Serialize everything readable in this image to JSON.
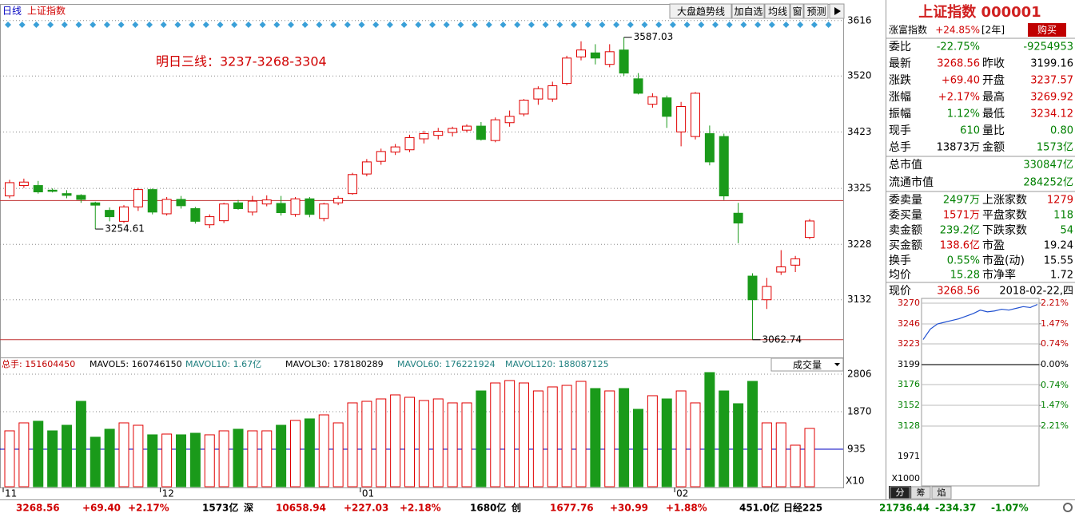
{
  "header": {
    "period": "日线",
    "symbol": "上证指数",
    "panel_title": "上证指数 000001"
  },
  "toolbar": [
    "大盘趋势线",
    "加自选",
    "均线",
    "窗",
    "预测"
  ],
  "chart_data": {
    "type": "candlestick",
    "annotation": "明日三线：3237-3268-3304",
    "high_label": {
      "value": 3587.03,
      "label": "3587.03"
    },
    "low_labels": [
      {
        "value": 3254.61,
        "label": "3254.61"
      },
      {
        "value": 3062.74,
        "label": "3062.74"
      }
    ],
    "ref_lines": [
      3304,
      3062.74
    ],
    "ylim": [
      3032,
      3624
    ],
    "yticks": [
      3616,
      3520,
      3423,
      3325,
      3228,
      3132
    ],
    "month_labels": [
      "11",
      "12",
      "01",
      "02"
    ],
    "month_index": [
      0,
      11,
      25,
      47
    ],
    "up_color": "#e00000",
    "down_color": "#1a9a1a",
    "candles": [
      {
        "open": 3312,
        "close": 3335,
        "high": 3340,
        "low": 3308
      },
      {
        "open": 3330,
        "close": 3336,
        "high": 3342,
        "low": 3326
      },
      {
        "open": 3330,
        "close": 3319,
        "high": 3338,
        "low": 3316
      },
      {
        "open": 3322,
        "close": 3320,
        "high": 3325,
        "low": 3318
      },
      {
        "open": 3316,
        "close": 3313,
        "high": 3322,
        "low": 3308
      },
      {
        "open": 3313,
        "close": 3306,
        "high": 3315,
        "low": 3300
      },
      {
        "open": 3300,
        "close": 3296,
        "high": 3302,
        "low": 3254.61
      },
      {
        "open": 3287,
        "close": 3276,
        "high": 3292,
        "low": 3268
      },
      {
        "open": 3268,
        "close": 3293,
        "high": 3296,
        "low": 3265
      },
      {
        "open": 3293,
        "close": 3323,
        "high": 3326,
        "low": 3286
      },
      {
        "open": 3323,
        "close": 3284,
        "high": 3325,
        "low": 3280
      },
      {
        "open": 3281,
        "close": 3306,
        "high": 3310,
        "low": 3278
      },
      {
        "open": 3306,
        "close": 3295,
        "high": 3312,
        "low": 3290
      },
      {
        "open": 3290,
        "close": 3268,
        "high": 3293,
        "low": 3264
      },
      {
        "open": 3262,
        "close": 3276,
        "high": 3280,
        "low": 3256
      },
      {
        "open": 3269,
        "close": 3298,
        "high": 3300,
        "low": 3265
      },
      {
        "open": 3300,
        "close": 3290,
        "high": 3305,
        "low": 3288
      },
      {
        "open": 3284,
        "close": 3303,
        "high": 3312,
        "low": 3278
      },
      {
        "open": 3298,
        "close": 3305,
        "high": 3313,
        "low": 3294
      },
      {
        "open": 3299,
        "close": 3283,
        "high": 3312,
        "low": 3278
      },
      {
        "open": 3280,
        "close": 3307,
        "high": 3310,
        "low": 3276
      },
      {
        "open": 3307,
        "close": 3280,
        "high": 3310,
        "low": 3275
      },
      {
        "open": 3273,
        "close": 3298,
        "high": 3300,
        "low": 3268
      },
      {
        "open": 3300,
        "close": 3308,
        "high": 3312,
        "low": 3296
      },
      {
        "open": 3316,
        "close": 3349,
        "high": 3352,
        "low": 3314
      },
      {
        "open": 3350,
        "close": 3371,
        "high": 3376,
        "low": 3346
      },
      {
        "open": 3372,
        "close": 3389,
        "high": 3394,
        "low": 3366
      },
      {
        "open": 3388,
        "close": 3397,
        "high": 3402,
        "low": 3383
      },
      {
        "open": 3392,
        "close": 3413,
        "high": 3418,
        "low": 3388
      },
      {
        "open": 3411,
        "close": 3420,
        "high": 3425,
        "low": 3403
      },
      {
        "open": 3417,
        "close": 3424,
        "high": 3430,
        "low": 3410
      },
      {
        "open": 3422,
        "close": 3429,
        "high": 3432,
        "low": 3415
      },
      {
        "open": 3426,
        "close": 3433,
        "high": 3436,
        "low": 3422
      },
      {
        "open": 3433,
        "close": 3410,
        "high": 3440,
        "low": 3408
      },
      {
        "open": 3408,
        "close": 3444,
        "high": 3448,
        "low": 3405
      },
      {
        "open": 3439,
        "close": 3450,
        "high": 3460,
        "low": 3432
      },
      {
        "open": 3454,
        "close": 3478,
        "high": 3480,
        "low": 3450
      },
      {
        "open": 3480,
        "close": 3498,
        "high": 3502,
        "low": 3470
      },
      {
        "open": 3480,
        "close": 3503,
        "high": 3510,
        "low": 3475
      },
      {
        "open": 3507,
        "close": 3551,
        "high": 3555,
        "low": 3504
      },
      {
        "open": 3553,
        "close": 3565,
        "high": 3580,
        "low": 3547
      },
      {
        "open": 3560,
        "close": 3551,
        "high": 3575,
        "low": 3540
      },
      {
        "open": 3540,
        "close": 3562,
        "high": 3575,
        "low": 3535
      },
      {
        "open": 3565,
        "close": 3525,
        "high": 3587.03,
        "low": 3520
      },
      {
        "open": 3515,
        "close": 3490,
        "high": 3525,
        "low": 3488
      },
      {
        "open": 3471,
        "close": 3484,
        "high": 3490,
        "low": 3465
      },
      {
        "open": 3482,
        "close": 3450,
        "high": 3486,
        "low": 3430
      },
      {
        "open": 3423,
        "close": 3467,
        "high": 3475,
        "low": 3398
      },
      {
        "open": 3415,
        "close": 3490,
        "high": 3492,
        "low": 3410
      },
      {
        "open": 3420,
        "close": 3371,
        "high": 3434,
        "low": 3365
      },
      {
        "open": 3415,
        "close": 3312,
        "high": 3420,
        "low": 3305
      },
      {
        "open": 3282,
        "close": 3265,
        "high": 3300,
        "low": 3230
      },
      {
        "open": 3173,
        "close": 3132,
        "high": 3178,
        "low": 3062.74
      },
      {
        "open": 3132,
        "close": 3155,
        "high": 3170,
        "low": 3116
      },
      {
        "open": 3180,
        "close": 3189,
        "high": 3218,
        "low": 3175
      },
      {
        "open": 3192,
        "close": 3203,
        "high": 3208,
        "low": 3180
      },
      {
        "open": 3240,
        "close": 3268.56,
        "high": 3272,
        "low": 3237
      }
    ],
    "volume": {
      "stats": [
        "总手: 151604450",
        "MAVOL5: 160746150",
        "MAVOL10: 1.67亿",
        "MAVOL30: 178180289",
        "MAVOL60: 176221924",
        "MAVOL120: 188087125"
      ],
      "selector": "成交量",
      "unit": "X10",
      "ylim": [
        0,
        2945
      ],
      "yticks": [
        2806,
        1870,
        935
      ],
      "values": [
        1393,
        1592,
        1632,
        1393,
        1532,
        2129,
        1234,
        1433,
        1592,
        1532,
        1294,
        1313,
        1294,
        1333,
        1294,
        1393,
        1433,
        1393,
        1393,
        1532,
        1652,
        1692,
        1791,
        1592,
        2090,
        2129,
        2189,
        2289,
        2229,
        2149,
        2189,
        2090,
        2090,
        2388,
        2587,
        2647,
        2587,
        2388,
        2488,
        2527,
        2627,
        2448,
        2388,
        2448,
        1930,
        2269,
        2189,
        2388,
        2090,
        2846,
        2388,
        2070,
        2627,
        1592,
        1592,
        1035,
        1453
      ]
    }
  },
  "quote": {
    "promo": [
      {
        "text": "涨富指数",
        "color": "k"
      },
      {
        "text": "+24.85%",
        "color": "r"
      },
      {
        "text": "[2年]",
        "color": "k"
      },
      {
        "text": "购买",
        "color": "k"
      }
    ],
    "rows": [
      [
        {
          "text": "委比",
          "color": "k"
        },
        {
          "text": "-22.75%",
          "color": "g"
        },
        {
          "text": "-9254953",
          "color": "g"
        }
      ],
      [
        {
          "text": "最新",
          "color": "k"
        },
        {
          "text": "3268.56",
          "color": "r"
        },
        {
          "text": "昨收",
          "color": "k"
        },
        {
          "text": "3199.16",
          "color": "k"
        }
      ],
      [
        {
          "text": "涨跌",
          "color": "k"
        },
        {
          "text": "+69.40",
          "color": "r"
        },
        {
          "text": "开盘",
          "color": "k"
        },
        {
          "text": "3237.57",
          "color": "r"
        }
      ],
      [
        {
          "text": "涨幅",
          "color": "k"
        },
        {
          "text": "+2.17%",
          "color": "r"
        },
        {
          "text": "最高",
          "color": "k"
        },
        {
          "text": "3269.92",
          "color": "r"
        }
      ],
      [
        {
          "text": "振幅",
          "color": "k"
        },
        {
          "text": "1.12%",
          "color": "g"
        },
        {
          "text": "最低",
          "color": "k"
        },
        {
          "text": "3234.12",
          "color": "r"
        }
      ],
      [
        {
          "text": "现手",
          "color": "k"
        },
        {
          "text": "610",
          "color": "g"
        },
        {
          "text": "量比",
          "color": "k"
        },
        {
          "text": "0.80",
          "color": "g"
        }
      ],
      [
        {
          "text": "总手",
          "color": "k"
        },
        {
          "text": "13873万",
          "color": "k"
        },
        {
          "text": "金额",
          "color": "k"
        },
        {
          "text": "1573亿",
          "color": "g"
        }
      ],
      [
        {
          "text": "总市值",
          "color": "k"
        },
        {
          "text": "330847亿",
          "color": "g"
        }
      ],
      [
        {
          "text": "流通市值",
          "color": "k"
        },
        {
          "text": "284252亿",
          "color": "g"
        }
      ],
      [
        {
          "text": "委卖量",
          "color": "k"
        },
        {
          "text": "2497万",
          "color": "g"
        },
        {
          "text": "上涨家数",
          "color": "k"
        },
        {
          "text": "1279",
          "color": "r"
        }
      ],
      [
        {
          "text": "委买量",
          "color": "k"
        },
        {
          "text": "1571万",
          "color": "r"
        },
        {
          "text": "平盘家数",
          "color": "k"
        },
        {
          "text": "118",
          "color": "g"
        }
      ],
      [
        {
          "text": "卖金额",
          "color": "k"
        },
        {
          "text": "239.2亿",
          "color": "g"
        },
        {
          "text": "下跌家数",
          "color": "k"
        },
        {
          "text": "54",
          "color": "g"
        }
      ],
      [
        {
          "text": "买金额",
          "color": "k"
        },
        {
          "text": "138.6亿",
          "color": "r"
        },
        {
          "text": "市盈",
          "color": "k"
        },
        {
          "text": "19.24",
          "color": "k"
        }
      ],
      [
        {
          "text": "换手",
          "color": "k"
        },
        {
          "text": "0.55%",
          "color": "g"
        },
        {
          "text": "市盈(动)",
          "color": "k"
        },
        {
          "text": "15.55",
          "color": "k"
        }
      ],
      [
        {
          "text": "均价",
          "color": "k"
        },
        {
          "text": "15.28",
          "color": "g"
        },
        {
          "text": "市净率",
          "color": "k"
        },
        {
          "text": "1.72",
          "color": "k"
        }
      ],
      [
        {
          "text": "现价",
          "color": "k"
        },
        {
          "text": "3268.56",
          "color": "r"
        },
        {
          "text": "2018-02-22,四",
          "color": "k"
        }
      ]
    ]
  },
  "intraday": {
    "type": "line",
    "color": "#2050d0",
    "values": [
      3228,
      3240,
      3246,
      3248,
      3250,
      3252,
      3255,
      3258,
      3262,
      3260,
      3261,
      3263,
      3262,
      3264,
      3266,
      3265,
      3268.56
    ],
    "ylim": [
      3128,
      3270
    ],
    "yticks": [
      3270,
      3246,
      3223,
      3199,
      3176,
      3152,
      3128
    ],
    "pct_ticks": [
      {
        "value": 2.21,
        "label": "2.21%"
      },
      {
        "value": 1.47,
        "label": "1.47%"
      },
      {
        "value": 0.74,
        "label": "0.74%"
      },
      {
        "value": 0,
        "label": "0.00%"
      },
      {
        "value": -0.74,
        "label": "0.74%"
      },
      {
        "value": -1.47,
        "label": "1.47%"
      },
      {
        "value": -2.21,
        "label": "2.21%"
      }
    ],
    "vol_tick": 1971,
    "vol_unit": "X1000",
    "tabs": [
      "分",
      "筹",
      "焰"
    ]
  },
  "status_bar": [
    {
      "text": "3268.56",
      "color": "r"
    },
    {
      "text": "+69.40",
      "color": "r"
    },
    {
      "text": "+2.17%",
      "color": "r"
    },
    {
      "text": "1573亿",
      "color": "k"
    },
    {
      "text": "深",
      "color": "k"
    },
    {
      "text": "10658.94",
      "color": "r"
    },
    {
      "text": "+227.03",
      "color": "r"
    },
    {
      "text": "+2.18%",
      "color": "r"
    },
    {
      "text": "1680亿",
      "color": "k"
    },
    {
      "text": "创",
      "color": "k"
    },
    {
      "text": "1677.76",
      "color": "r"
    },
    {
      "text": "+30.99",
      "color": "r"
    },
    {
      "text": "+1.88%",
      "color": "r"
    },
    {
      "text": "451.0亿",
      "color": "k"
    },
    {
      "text": "日经225",
      "color": "k"
    },
    {
      "text": "21736.44",
      "color": "g"
    },
    {
      "text": "-234.37",
      "color": "g"
    },
    {
      "text": "-1.07%",
      "color": "g"
    }
  ]
}
